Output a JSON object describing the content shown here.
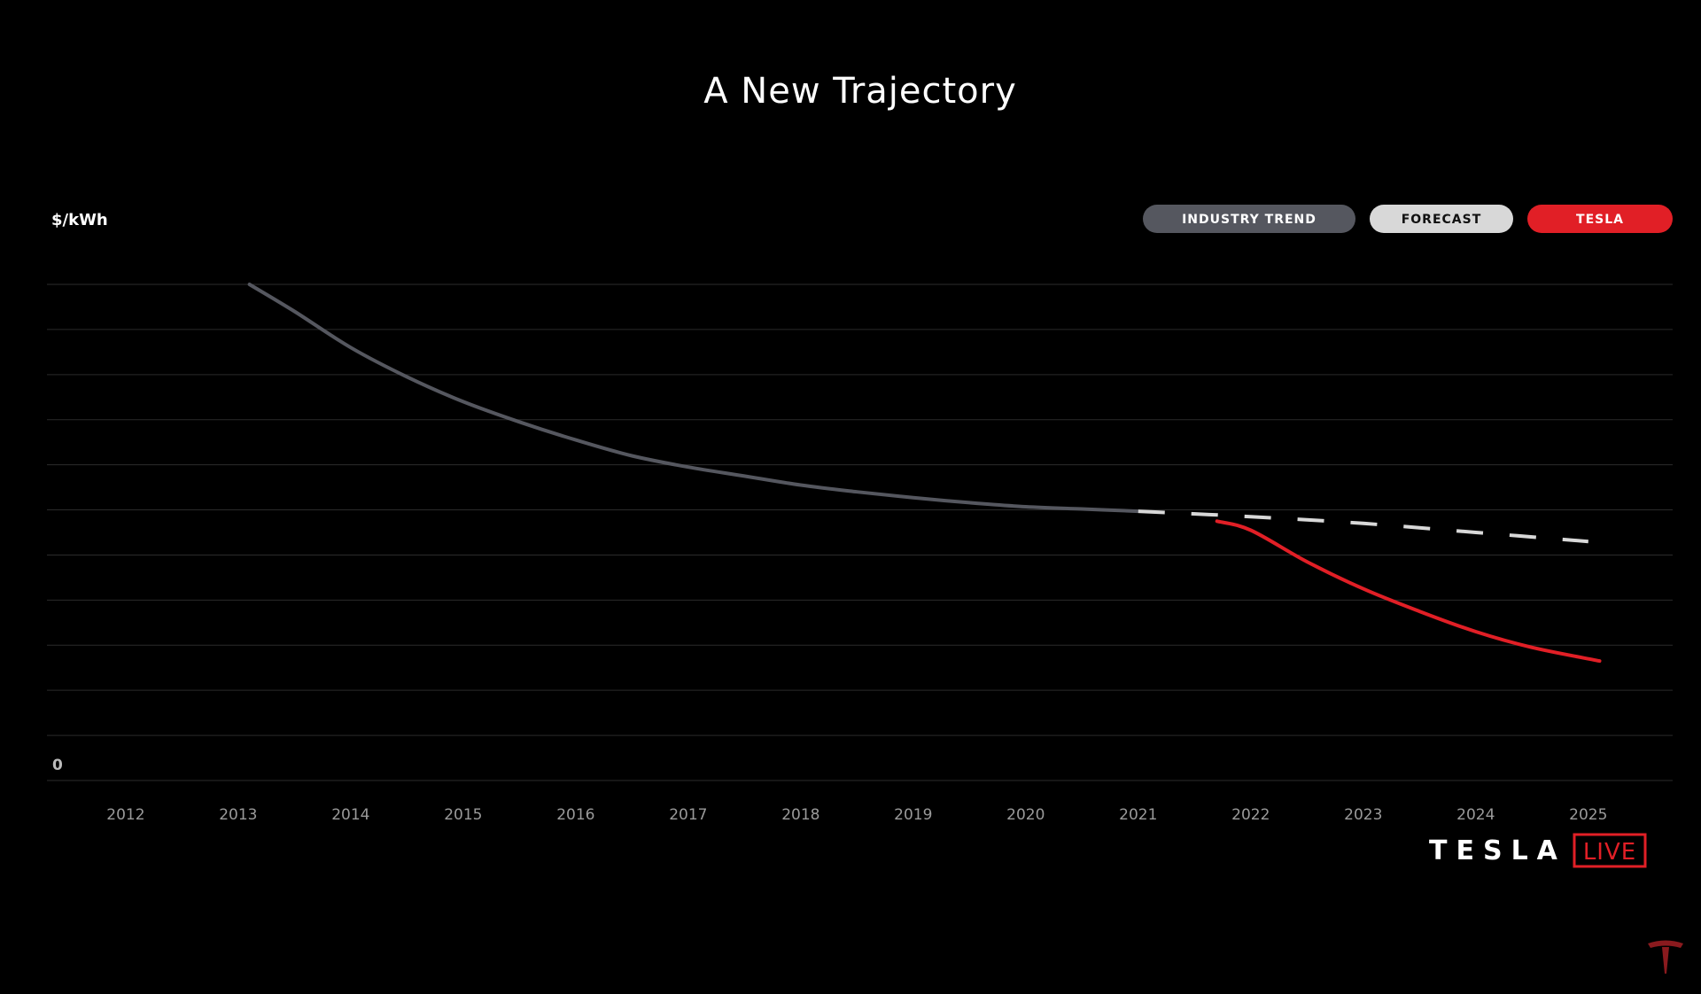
{
  "chart_data": {
    "type": "line",
    "title": "A New Trajectory",
    "ylabel": "$/kWh",
    "y_tick_labels": [
      "0"
    ],
    "x_tick_labels": [
      "2012",
      "2013",
      "2014",
      "2015",
      "2016",
      "2017",
      "2018",
      "2019",
      "2020",
      "2021",
      "2022",
      "2023",
      "2024",
      "2025"
    ],
    "xlim": [
      2011.3,
      2025.75
    ],
    "ylim": [
      0,
      11
    ],
    "grid": true,
    "legend_position": "top-right",
    "legend": [
      {
        "label": "INDUSTRY TREND",
        "color": "#55575f",
        "text_color": "#ffffff"
      },
      {
        "label": "FORECAST",
        "color": "#d8d8d8",
        "text_color": "#111111"
      },
      {
        "label": "TESLA",
        "color": "#e11f26",
        "text_color": "#ffffff"
      }
    ],
    "series": [
      {
        "name": "INDUSTRY TREND",
        "color": "#55575f",
        "style": "solid",
        "x": [
          2013.1,
          2013.5,
          2014.0,
          2014.5,
          2015.0,
          2015.5,
          2016.0,
          2016.5,
          2017.0,
          2017.5,
          2018.0,
          2018.5,
          2019.0,
          2019.5,
          2020.0,
          2020.5,
          2021.0
        ],
        "y": [
          11.0,
          10.4,
          9.6,
          8.95,
          8.4,
          7.95,
          7.55,
          7.2,
          6.95,
          6.75,
          6.55,
          6.4,
          6.27,
          6.16,
          6.07,
          6.02,
          5.97
        ]
      },
      {
        "name": "FORECAST",
        "color": "#d8d8d8",
        "style": "dashed",
        "x": [
          2021.0,
          2022.0,
          2023.0,
          2024.0,
          2025.0
        ],
        "y": [
          5.97,
          5.85,
          5.7,
          5.5,
          5.3
        ]
      },
      {
        "name": "TESLA",
        "color": "#e11f26",
        "style": "solid",
        "x": [
          2021.7,
          2022.0,
          2022.5,
          2023.0,
          2023.5,
          2024.0,
          2024.5,
          2025.1
        ],
        "y": [
          5.75,
          5.55,
          4.85,
          4.25,
          3.75,
          3.3,
          2.95,
          2.65
        ]
      }
    ]
  },
  "branding": {
    "wordmark": "TESLA",
    "live": "LIVE",
    "logo_icon": "tesla-t-logo-icon"
  }
}
